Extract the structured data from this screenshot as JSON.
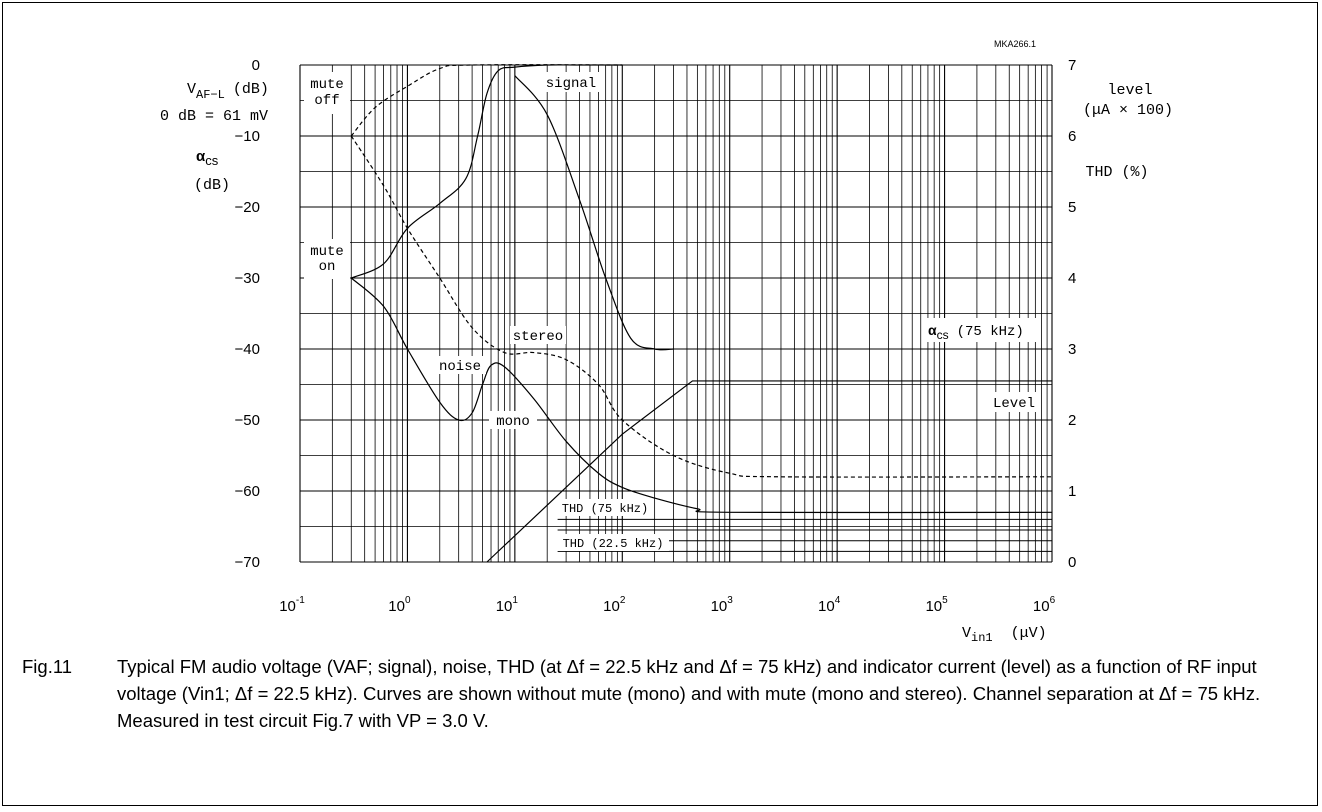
{
  "figure_id": "MKA266.1",
  "caption": {
    "fig_label": "Fig.11",
    "text": "Typical FM audio voltage (VAF; signal), noise, THD (at Δf = 22.5 kHz and Δf = 75 kHz) and indicator current (level) as a function of RF input voltage (Vin1; Δf = 22.5 kHz). Curves are shown without mute (mono) and with mute (mono and stereo). Channel separation at Δf = 75 kHz. Measured in test circuit Fig.7 with VP = 3.0 V."
  },
  "chart_data": {
    "type": "line",
    "x_scale": "log",
    "xlim": [
      0.1,
      1000000
    ],
    "ylim_left": [
      -70,
      0
    ],
    "ylim_right": [
      0,
      7
    ],
    "grid": true,
    "x_ticks": [
      {
        "base": "10",
        "exp": "-1"
      },
      {
        "base": "10",
        "exp": "0"
      },
      {
        "base": "10",
        "exp": "1"
      },
      {
        "base": "10",
        "exp": "2"
      },
      {
        "base": "10",
        "exp": "3"
      },
      {
        "base": "10",
        "exp": "4"
      },
      {
        "base": "10",
        "exp": "5"
      },
      {
        "base": "10",
        "exp": "6"
      }
    ],
    "y_left_ticks": [
      "0",
      "−10",
      "−20",
      "−30",
      "−40",
      "−50",
      "−60",
      "−70"
    ],
    "y_right_ticks": [
      "7",
      "6",
      "5",
      "4",
      "3",
      "2",
      "1",
      "0"
    ],
    "left_axis": {
      "vaf_label": "V",
      "vaf_sub": "AF−L",
      "vaf_unit": "(dB)",
      "zero_ref": "0 dB = 61 mV",
      "alpha_label": "α",
      "alpha_sub": "cs",
      "alpha_unit": "(dB)"
    },
    "right_axis": {
      "level_label": "level",
      "level_unit": "(μA × 100)",
      "thd_label": "THD (%)"
    },
    "x_axis": {
      "label": "V",
      "label_sub": "in1",
      "unit": "(μV)"
    },
    "annotations": {
      "mute_off_1": "mute",
      "mute_off_2": "off",
      "mute_on_1": "mute",
      "mute_on_2": "on",
      "signal": "signal",
      "noise": "noise",
      "stereo": "stereo",
      "mono": "mono",
      "acs_alpha": "α",
      "acs_sub": "cs",
      "acs_rest": "(75 kHz)",
      "level": "Level",
      "thd75": "THD (75 kHz)",
      "thd225": "THD (22.5 kHz)"
    },
    "series": [
      {
        "label": "signal (mute off)",
        "axis": "left",
        "style": "dashed",
        "points": [
          [
            0.3,
            -10
          ],
          [
            0.5,
            -6
          ],
          [
            1,
            -3
          ],
          [
            2,
            -0.5
          ],
          [
            4,
            0
          ],
          [
            100,
            0
          ]
        ]
      },
      {
        "label": "signal",
        "axis": "left",
        "style": "solid",
        "points": [
          [
            0.3,
            -30
          ],
          [
            0.6,
            -28
          ],
          [
            1,
            -23
          ],
          [
            2,
            -19.5
          ],
          [
            3.5,
            -16
          ],
          [
            4.5,
            -10
          ],
          [
            5.5,
            -4
          ],
          [
            7,
            -0.8
          ],
          [
            10,
            -0.3
          ],
          [
            20,
            0
          ],
          [
            40,
            0
          ],
          [
            100,
            0
          ]
        ]
      },
      {
        "label": "signal (mute on)",
        "axis": "left",
        "style": "solid",
        "points": [
          [
            10,
            -1.5
          ],
          [
            20,
            -7
          ],
          [
            40,
            -19
          ],
          [
            70,
            -30
          ],
          [
            120,
            -38.5
          ],
          [
            200,
            -40
          ],
          [
            300,
            -40
          ]
        ]
      },
      {
        "label": "stereo",
        "axis": "left",
        "style": "dashed",
        "points": [
          [
            0.3,
            -10
          ],
          [
            0.6,
            -17
          ],
          [
            1,
            -23
          ],
          [
            2,
            -30
          ],
          [
            4,
            -37
          ],
          [
            8,
            -40.5
          ],
          [
            15,
            -40.5
          ],
          [
            30,
            -41.5
          ],
          [
            60,
            -45
          ],
          [
            100,
            -50
          ],
          [
            300,
            -55
          ],
          [
            1000,
            -57.5
          ],
          [
            3000,
            -58
          ],
          [
            1000000,
            -58
          ]
        ]
      },
      {
        "label": "noise",
        "axis": "left",
        "style": "solid",
        "points": [
          [
            0.3,
            -30
          ],
          [
            0.6,
            -34
          ],
          [
            1,
            -40
          ],
          [
            2,
            -47.5
          ],
          [
            3,
            -50
          ],
          [
            4,
            -49
          ],
          [
            5,
            -45
          ],
          [
            6,
            -42.3
          ],
          [
            8,
            -42.5
          ],
          [
            15,
            -47
          ],
          [
            30,
            -53
          ],
          [
            60,
            -57.5
          ],
          [
            100,
            -59.5
          ],
          [
            200,
            -61
          ],
          [
            500,
            -62.5
          ],
          [
            1000,
            -63
          ],
          [
            1000000,
            -63
          ]
        ]
      },
      {
        "label": "level",
        "axis": "right",
        "style": "solid",
        "points": [
          [
            5.5,
            0
          ],
          [
            20,
            0.8
          ],
          [
            100,
            1.8
          ],
          [
            450,
            2.55
          ],
          [
            1000000,
            2.55
          ]
        ]
      }
    ]
  }
}
